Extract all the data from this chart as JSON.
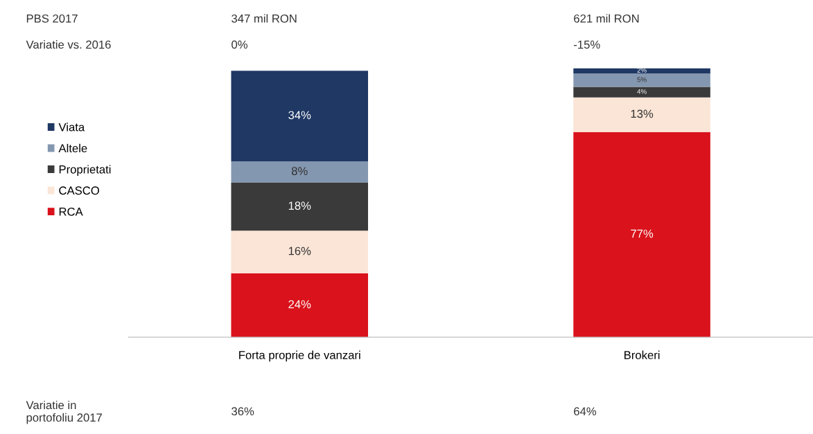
{
  "chart_data": {
    "type": "bar",
    "stacked": true,
    "categories": [
      "Forta proprie de vanzari",
      "Brokeri"
    ],
    "series": [
      {
        "name": "RCA",
        "color": "#d9121b",
        "values": [
          24,
          77
        ],
        "value_labels": [
          "24%",
          "77%"
        ]
      },
      {
        "name": "CASCO",
        "color": "#fbe5d6",
        "values": [
          16,
          13
        ],
        "value_labels": [
          "16%",
          "13%"
        ]
      },
      {
        "name": "Proprietati",
        "color": "#3a3a3a",
        "values": [
          18,
          4
        ],
        "value_labels": [
          "18%",
          "4%"
        ]
      },
      {
        "name": "Altele",
        "color": "#8497b0",
        "values": [
          8,
          5
        ],
        "value_labels": [
          "8%",
          "5%"
        ]
      },
      {
        "name": "Viata",
        "color": "#1f3864",
        "values": [
          34,
          2
        ],
        "value_labels": [
          "34%",
          "2%"
        ]
      }
    ],
    "legend": "left",
    "grid": false,
    "tick_labels": "x",
    "annotations": [
      "PBS 2017",
      "347 mil RON",
      "621 mil RON",
      "Variatie vs. 2016",
      "0%",
      "-15%",
      "Variatie in\nportofoliu 2017",
      "36%",
      "64%"
    ]
  }
}
